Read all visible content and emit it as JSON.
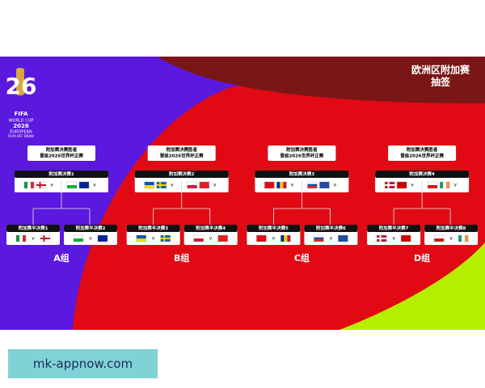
{
  "header": {
    "title_line1": "欧洲区附加赛",
    "title_line2": "抽签"
  },
  "logo": {
    "number": "26",
    "brand": "FIFA",
    "lines": [
      "WORLD CUP",
      "2026",
      "EUROPEAN",
      "PLAY-OFF DRAW"
    ]
  },
  "versus": "v",
  "groups": [
    {
      "winner_lines": [
        "附加赛决赛胜者",
        "晋级2026世界杯正赛"
      ],
      "final": "附加赛决赛1",
      "semis": [
        "附加赛半决赛1",
        "附加赛半决赛2"
      ],
      "label": "A组"
    },
    {
      "winner_lines": [
        "附加赛决赛胜者",
        "晋级2026世界杯正赛"
      ],
      "final": "附加赛决赛2",
      "semis": [
        "附加赛半决赛3",
        "附加赛半决赛4"
      ],
      "label": "B组"
    },
    {
      "winner_lines": [
        "附加赛决赛胜者",
        "晋级2026世界杯正赛"
      ],
      "final": "附加赛决赛3",
      "semis": [
        "附加赛半决赛5",
        "附加赛半决赛6"
      ],
      "label": "C组"
    },
    {
      "winner_lines": [
        "附加赛决赛胜者",
        "晋级2026世界杯正赛"
      ],
      "final": "附加赛决赛4",
      "semis": [
        "附加赛半决赛7",
        "附加赛半决赛8"
      ],
      "label": "D组"
    }
  ],
  "watermark": "mk-appnow.com"
}
